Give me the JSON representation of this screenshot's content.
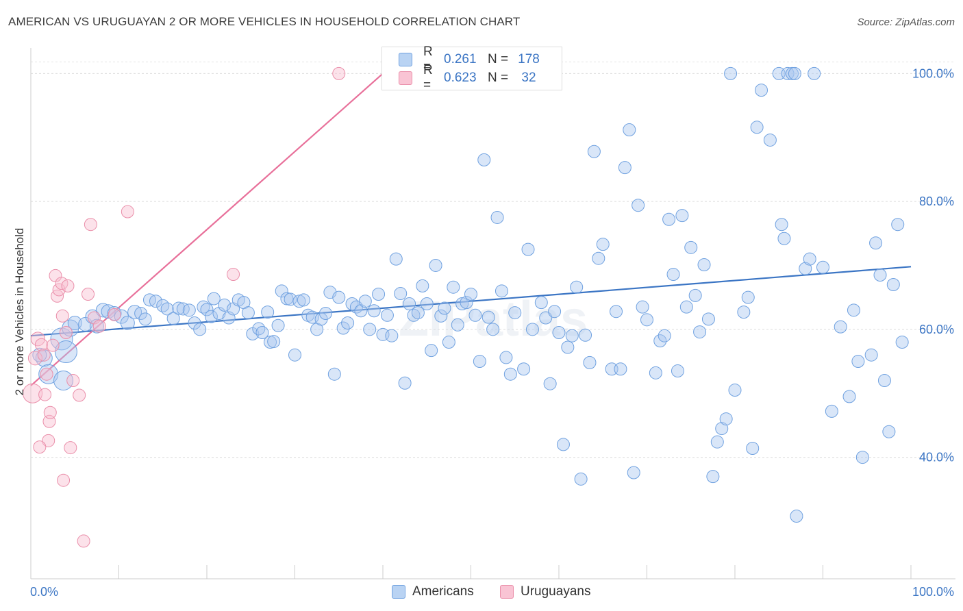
{
  "title": "AMERICAN VS URUGUAYAN 2 OR MORE VEHICLES IN HOUSEHOLD CORRELATION CHART",
  "source": "Source: ZipAtlas.com",
  "watermark": "ZIPatlas",
  "legend": {
    "r_label": "R =",
    "n_label": "N =",
    "rows": [
      {
        "name": "Americans",
        "r": "0.261",
        "n": "178",
        "fill": "#b9d3f3",
        "stroke": "#6fa1e0"
      },
      {
        "name": "Uruguayans",
        "r": "0.623",
        "n": "32",
        "fill": "#f9c4d4",
        "stroke": "#ea8faa"
      }
    ]
  },
  "chart_data": {
    "type": "scatter",
    "xlabel": "",
    "ylabel": "2 or more Vehicles in Household",
    "xlim": [
      0,
      100
    ],
    "ylim": [
      21,
      104
    ],
    "x_tick_labels": [
      "0.0%",
      "100.0%"
    ],
    "y_ticks": [
      40,
      60,
      80,
      100
    ],
    "y_tick_labels": [
      "40.0%",
      "60.0%",
      "80.0%",
      "100.0%"
    ],
    "grid": true,
    "legend_position": "top-center",
    "colors": {
      "americans": "#3b75c4",
      "uruguayans": "#e8709a",
      "axis_text": "#3b75c4"
    },
    "series": [
      {
        "name": "Americans",
        "trendline": {
          "x": [
            0,
            100
          ],
          "y": [
            59.0,
            69.8
          ]
        },
        "points": [
          [
            3.5,
            58.5,
            16
          ],
          [
            4.0,
            56.5,
            16
          ],
          [
            1.5,
            55.5,
            12
          ],
          [
            2.0,
            53.0,
            14
          ],
          [
            3.7,
            52.0,
            14
          ],
          [
            1.0,
            56.0,
            10
          ],
          [
            4.5,
            60.2,
            12
          ],
          [
            5.0,
            61.0,
            10
          ],
          [
            6.2,
            60.8,
            10
          ],
          [
            7.0,
            62.0,
            10
          ],
          [
            7.5,
            60.5,
            10
          ],
          [
            8.2,
            63.0,
            10
          ],
          [
            8.8,
            62.8,
            10
          ],
          [
            9.5,
            62.5,
            10
          ],
          [
            10.3,
            62.0,
            10
          ],
          [
            11.0,
            61.0,
            10
          ],
          [
            11.8,
            62.7,
            10
          ],
          [
            12.5,
            62.5,
            9
          ],
          [
            13.0,
            61.6,
            9
          ],
          [
            13.5,
            64.6,
            9
          ],
          [
            14.2,
            64.4,
            9
          ],
          [
            15.0,
            63.7,
            9
          ],
          [
            15.5,
            63.2,
            9
          ],
          [
            16.2,
            61.7,
            9
          ],
          [
            16.8,
            63.3,
            9
          ],
          [
            17.3,
            63.2,
            9
          ],
          [
            18.0,
            63.0,
            9
          ],
          [
            18.6,
            61.0,
            9
          ],
          [
            19.2,
            60.0,
            9
          ],
          [
            19.6,
            63.5,
            9
          ],
          [
            20.0,
            63.1,
            9
          ],
          [
            20.5,
            62.0,
            9
          ],
          [
            20.8,
            64.8,
            9
          ],
          [
            21.4,
            62.5,
            9
          ],
          [
            22.0,
            63.8,
            9
          ],
          [
            22.5,
            61.8,
            9
          ],
          [
            23.0,
            63.2,
            9
          ],
          [
            23.6,
            64.6,
            9
          ],
          [
            24.2,
            64.2,
            9
          ],
          [
            24.7,
            62.6,
            9
          ],
          [
            25.2,
            59.3,
            9
          ],
          [
            25.9,
            60.1,
            9
          ],
          [
            26.3,
            59.5,
            9
          ],
          [
            26.9,
            62.7,
            9
          ],
          [
            27.2,
            58.0,
            9
          ],
          [
            27.6,
            58.1,
            9
          ],
          [
            28.1,
            60.6,
            9
          ],
          [
            28.5,
            66.0,
            9
          ],
          [
            29.1,
            64.8,
            9
          ],
          [
            29.5,
            64.7,
            9
          ],
          [
            30.0,
            56.0,
            9
          ],
          [
            30.5,
            64.4,
            9
          ],
          [
            31.0,
            64.6,
            9
          ],
          [
            31.5,
            62.2,
            9
          ],
          [
            32.0,
            61.9,
            9
          ],
          [
            32.5,
            60.0,
            9
          ],
          [
            33.0,
            61.6,
            9
          ],
          [
            33.5,
            62.5,
            9
          ],
          [
            34.0,
            65.8,
            9
          ],
          [
            34.5,
            53.0,
            9
          ],
          [
            35.0,
            65.0,
            9
          ],
          [
            35.5,
            60.2,
            9
          ],
          [
            36.0,
            61.0,
            9
          ],
          [
            36.5,
            64.0,
            9
          ],
          [
            37.0,
            63.5,
            9
          ],
          [
            37.5,
            62.9,
            9
          ],
          [
            38.0,
            64.4,
            9
          ],
          [
            38.5,
            60.0,
            9
          ],
          [
            39.0,
            62.9,
            9
          ],
          [
            39.5,
            65.5,
            9
          ],
          [
            40.0,
            59.2,
            9
          ],
          [
            40.5,
            62.2,
            9
          ],
          [
            41.0,
            59.0,
            9
          ],
          [
            41.5,
            71.0,
            9
          ],
          [
            42.0,
            65.6,
            9
          ],
          [
            42.5,
            51.6,
            9
          ],
          [
            43.0,
            64.0,
            9
          ],
          [
            43.5,
            62.2,
            9
          ],
          [
            44.0,
            62.6,
            9
          ],
          [
            44.5,
            66.8,
            9
          ],
          [
            45.0,
            64.0,
            9
          ],
          [
            45.5,
            56.7,
            9
          ],
          [
            46.0,
            70.0,
            9
          ],
          [
            46.6,
            62.1,
            9
          ],
          [
            47.0,
            63.3,
            9
          ],
          [
            47.5,
            58.0,
            9
          ],
          [
            48.0,
            66.6,
            9
          ],
          [
            48.5,
            60.7,
            9
          ],
          [
            49.0,
            64.0,
            9
          ],
          [
            49.5,
            64.2,
            9
          ],
          [
            50.0,
            65.5,
            9
          ],
          [
            50.5,
            62.2,
            9
          ],
          [
            51.0,
            55.0,
            9
          ],
          [
            51.5,
            86.5,
            9
          ],
          [
            52.0,
            61.9,
            9
          ],
          [
            52.5,
            60.0,
            9
          ],
          [
            53.0,
            77.5,
            9
          ],
          [
            53.5,
            66.0,
            9
          ],
          [
            54.0,
            55.6,
            9
          ],
          [
            54.5,
            53.0,
            9
          ],
          [
            55.0,
            62.6,
            9
          ],
          [
            56.0,
            53.8,
            9
          ],
          [
            56.5,
            72.5,
            9
          ],
          [
            57.0,
            60.0,
            9
          ],
          [
            58.0,
            64.2,
            9
          ],
          [
            58.5,
            61.8,
            9
          ],
          [
            59.0,
            51.5,
            9
          ],
          [
            59.5,
            62.8,
            9
          ],
          [
            60.0,
            59.5,
            9
          ],
          [
            60.5,
            42.0,
            9
          ],
          [
            61.0,
            57.2,
            9
          ],
          [
            61.5,
            59.0,
            9
          ],
          [
            62.0,
            66.6,
            9
          ],
          [
            62.5,
            36.6,
            9
          ],
          [
            63.0,
            59.1,
            9
          ],
          [
            63.5,
            54.8,
            9
          ],
          [
            64.0,
            87.8,
            9
          ],
          [
            64.5,
            71.1,
            9
          ],
          [
            65.0,
            73.3,
            9
          ],
          [
            66.0,
            53.8,
            9
          ],
          [
            66.5,
            62.8,
            9
          ],
          [
            67.0,
            53.8,
            9
          ],
          [
            67.5,
            85.3,
            9
          ],
          [
            68.0,
            91.2,
            9
          ],
          [
            68.5,
            37.6,
            9
          ],
          [
            69.0,
            79.4,
            9
          ],
          [
            69.5,
            63.5,
            9
          ],
          [
            70.0,
            61.5,
            9
          ],
          [
            71.0,
            53.2,
            9
          ],
          [
            71.5,
            58.2,
            9
          ],
          [
            72.0,
            59.0,
            9
          ],
          [
            72.5,
            77.2,
            9
          ],
          [
            73.0,
            68.6,
            9
          ],
          [
            73.5,
            53.5,
            9
          ],
          [
            74.0,
            77.8,
            9
          ],
          [
            74.5,
            63.5,
            9
          ],
          [
            75.0,
            72.8,
            9
          ],
          [
            75.5,
            65.3,
            9
          ],
          [
            76.0,
            59.6,
            9
          ],
          [
            76.5,
            70.1,
            9
          ],
          [
            77.0,
            61.6,
            9
          ],
          [
            77.5,
            37.0,
            9
          ],
          [
            78.0,
            42.4,
            9
          ],
          [
            78.5,
            44.5,
            9
          ],
          [
            79.0,
            46.0,
            9
          ],
          [
            79.5,
            100.0,
            9
          ],
          [
            80.0,
            50.5,
            9
          ],
          [
            81.0,
            62.7,
            9
          ],
          [
            81.5,
            65.0,
            9
          ],
          [
            82.0,
            41.4,
            9
          ],
          [
            82.5,
            91.6,
            9
          ],
          [
            83.0,
            97.4,
            9
          ],
          [
            84.0,
            89.6,
            9
          ],
          [
            85.0,
            100.0,
            9
          ],
          [
            85.3,
            76.4,
            9
          ],
          [
            85.6,
            74.2,
            9
          ],
          [
            86.0,
            100.0,
            9
          ],
          [
            86.5,
            100.0,
            9
          ],
          [
            86.8,
            100.0,
            9
          ],
          [
            87.0,
            30.8,
            9
          ],
          [
            88.0,
            69.5,
            9
          ],
          [
            88.5,
            71.0,
            9
          ],
          [
            89.0,
            100.0,
            9
          ],
          [
            90.0,
            69.7,
            9
          ],
          [
            91.0,
            47.2,
            9
          ],
          [
            92.0,
            60.4,
            9
          ],
          [
            93.5,
            63.0,
            9
          ],
          [
            94.5,
            40.0,
            9
          ],
          [
            95.5,
            56.0,
            9
          ],
          [
            96.5,
            68.5,
            9
          ],
          [
            97.5,
            44.0,
            9
          ],
          [
            98.5,
            76.4,
            9
          ],
          [
            99.0,
            58.0,
            9
          ],
          [
            98.0,
            67.0,
            9
          ],
          [
            97.0,
            52.0,
            9
          ],
          [
            96.0,
            73.5,
            9
          ],
          [
            94.0,
            55.0,
            9
          ],
          [
            93.0,
            49.5,
            9
          ]
        ]
      },
      {
        "name": "Uruguayans",
        "trendline": {
          "x": [
            0,
            40.0
          ],
          "y": [
            51.2,
            100.0
          ]
        },
        "points": [
          [
            0.2,
            50.0,
            14
          ],
          [
            0.5,
            55.5,
            10
          ],
          [
            0.8,
            58.5,
            10
          ],
          [
            1.2,
            57.6,
            9
          ],
          [
            1.5,
            56.0,
            9
          ],
          [
            1.6,
            49.8,
            9
          ],
          [
            1.8,
            53.0,
            9
          ],
          [
            2.0,
            42.6,
            9
          ],
          [
            2.1,
            45.6,
            9
          ],
          [
            2.2,
            47.0,
            9
          ],
          [
            2.5,
            57.5,
            9
          ],
          [
            2.8,
            68.4,
            9
          ],
          [
            3.0,
            65.2,
            9
          ],
          [
            3.2,
            66.2,
            9
          ],
          [
            3.5,
            67.2,
            9
          ],
          [
            3.6,
            62.1,
            9
          ],
          [
            3.7,
            36.4,
            9
          ],
          [
            4.0,
            59.5,
            9
          ],
          [
            4.2,
            66.8,
            9
          ],
          [
            4.5,
            41.5,
            9
          ],
          [
            4.8,
            52.0,
            9
          ],
          [
            5.5,
            49.7,
            9
          ],
          [
            6.0,
            26.9,
            9
          ],
          [
            6.5,
            65.5,
            9
          ],
          [
            6.8,
            76.4,
            9
          ],
          [
            7.2,
            61.8,
            9
          ],
          [
            7.8,
            60.5,
            9
          ],
          [
            9.5,
            62.3,
            9
          ],
          [
            11.0,
            78.4,
            9
          ],
          [
            23.0,
            68.6,
            9
          ],
          [
            35.0,
            100.0,
            9
          ],
          [
            1.0,
            41.6,
            9
          ]
        ]
      }
    ]
  }
}
